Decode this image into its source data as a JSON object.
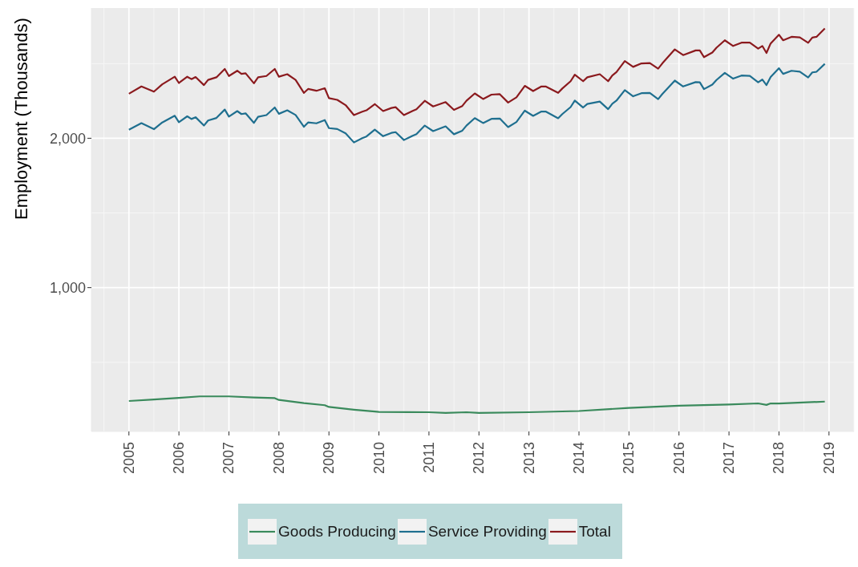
{
  "chart_data": {
    "type": "line",
    "ylabel": "Employment (Thousands)",
    "xlim": [
      "2004-04",
      "2019-07"
    ],
    "xticks": [
      "2005",
      "2006",
      "2007",
      "2008",
      "2009",
      "2010",
      "2011",
      "2012",
      "2013",
      "2014",
      "2015",
      "2016",
      "2017",
      "2018",
      "2019"
    ],
    "ylim": [
      37,
      2872
    ],
    "yticks": [
      {
        "value": 1000,
        "label": "1,000"
      },
      {
        "value": 2000,
        "label": "2,000"
      }
    ],
    "grid": true,
    "legend": "bottom",
    "series": [
      {
        "name": "Goods Producing",
        "color": "#3a8a5c",
        "x": [
          "2005-01",
          "2005-07",
          "2006-01",
          "2006-06",
          "2007-01",
          "2007-07",
          "2007-12",
          "2008-01",
          "2008-07",
          "2008-12",
          "2009-01",
          "2009-07",
          "2009-12",
          "2010-01",
          "2011-01",
          "2011-05",
          "2011-10",
          "2012-01",
          "2013-01",
          "2014-01",
          "2015-01",
          "2016-01",
          "2017-01",
          "2017-08",
          "2017-10",
          "2017-11",
          "2018-01",
          "2018-12"
        ],
        "values": [
          241,
          251,
          262,
          272,
          272,
          265,
          260,
          248,
          227,
          213,
          201,
          183,
          171,
          168,
          166,
          161,
          166,
          161,
          166,
          174,
          195,
          209,
          218,
          225,
          215,
          225,
          224,
          237
        ]
      },
      {
        "name": "Service Providing",
        "color": "#1f6f8f",
        "x": [
          "2005-01",
          "2005-04",
          "2005-07",
          "2005-09",
          "2005-12",
          "2006-01",
          "2006-03",
          "2006-04",
          "2006-05",
          "2006-07",
          "2006-08",
          "2006-10",
          "2006-12",
          "2007-01",
          "2007-03",
          "2007-04",
          "2007-05",
          "2007-07",
          "2007-08",
          "2007-10",
          "2007-12",
          "2008-01",
          "2008-03",
          "2008-05",
          "2008-07",
          "2008-08",
          "2008-10",
          "2008-12",
          "2009-01",
          "2009-03",
          "2009-05",
          "2009-07",
          "2009-09",
          "2009-10",
          "2009-12",
          "2010-02",
          "2010-04",
          "2010-05",
          "2010-07",
          "2010-09",
          "2010-10",
          "2010-12",
          "2011-02",
          "2011-05",
          "2011-07",
          "2011-09",
          "2011-10",
          "2011-12",
          "2012-02",
          "2012-04",
          "2012-06",
          "2012-08",
          "2012-10",
          "2012-12",
          "2013-02",
          "2013-04",
          "2013-05",
          "2013-08",
          "2013-09",
          "2013-11",
          "2013-12",
          "2014-02",
          "2014-03",
          "2014-06",
          "2014-08",
          "2014-09",
          "2014-10",
          "2014-12",
          "2015-02",
          "2015-04",
          "2015-06",
          "2015-08",
          "2015-09",
          "2015-12",
          "2016-02",
          "2016-05",
          "2016-06",
          "2016-07",
          "2016-09",
          "2016-10",
          "2016-12",
          "2017-02",
          "2017-04",
          "2017-06",
          "2017-08",
          "2017-09",
          "2017-10",
          "2017-11",
          "2018-01",
          "2018-02",
          "2018-04",
          "2018-06",
          "2018-08",
          "2018-09",
          "2018-10",
          "2018-12"
        ],
        "values": [
          2057,
          2101,
          2061,
          2106,
          2151,
          2108,
          2147,
          2129,
          2141,
          2085,
          2119,
          2136,
          2192,
          2145,
          2182,
          2162,
          2167,
          2103,
          2144,
          2155,
          2206,
          2164,
          2187,
          2156,
          2077,
          2106,
          2100,
          2122,
          2068,
          2062,
          2033,
          1972,
          2001,
          2012,
          2058,
          2014,
          2036,
          2041,
          1988,
          2016,
          2028,
          2085,
          2048,
          2080,
          2027,
          2051,
          2085,
          2135,
          2102,
          2130,
          2132,
          2075,
          2109,
          2185,
          2150,
          2179,
          2179,
          2134,
          2162,
          2209,
          2252,
          2206,
          2230,
          2246,
          2195,
          2231,
          2252,
          2322,
          2281,
          2302,
          2303,
          2262,
          2296,
          2386,
          2347,
          2376,
          2375,
          2329,
          2359,
          2390,
          2438,
          2399,
          2420,
          2418,
          2375,
          2393,
          2356,
          2410,
          2469,
          2431,
          2452,
          2446,
          2407,
          2441,
          2445,
          2498
        ]
      },
      {
        "name": "Total",
        "color": "#8b1a1e",
        "x": [
          "2005-01",
          "2005-04",
          "2005-07",
          "2005-09",
          "2005-12",
          "2006-01",
          "2006-03",
          "2006-04",
          "2006-05",
          "2006-07",
          "2006-08",
          "2006-10",
          "2006-12",
          "2007-01",
          "2007-03",
          "2007-04",
          "2007-05",
          "2007-07",
          "2007-08",
          "2007-10",
          "2007-12",
          "2008-01",
          "2008-03",
          "2008-05",
          "2008-07",
          "2008-08",
          "2008-10",
          "2008-12",
          "2009-01",
          "2009-03",
          "2009-05",
          "2009-07",
          "2009-09",
          "2009-10",
          "2009-12",
          "2010-02",
          "2010-04",
          "2010-05",
          "2010-07",
          "2010-09",
          "2010-10",
          "2010-12",
          "2011-02",
          "2011-05",
          "2011-07",
          "2011-09",
          "2011-10",
          "2011-12",
          "2012-02",
          "2012-04",
          "2012-06",
          "2012-08",
          "2012-10",
          "2012-12",
          "2013-02",
          "2013-04",
          "2013-05",
          "2013-08",
          "2013-09",
          "2013-11",
          "2013-12",
          "2014-02",
          "2014-03",
          "2014-06",
          "2014-08",
          "2014-09",
          "2014-10",
          "2014-12",
          "2015-02",
          "2015-04",
          "2015-06",
          "2015-08",
          "2015-09",
          "2015-12",
          "2016-02",
          "2016-05",
          "2016-06",
          "2016-07",
          "2016-09",
          "2016-10",
          "2016-12",
          "2017-02",
          "2017-04",
          "2017-06",
          "2017-08",
          "2017-09",
          "2017-10",
          "2017-11",
          "2018-01",
          "2018-02",
          "2018-04",
          "2018-06",
          "2018-08",
          "2018-09",
          "2018-10",
          "2018-12"
        ],
        "values": [
          2298,
          2347,
          2312,
          2361,
          2412,
          2370,
          2412,
          2396,
          2410,
          2356,
          2391,
          2408,
          2464,
          2417,
          2452,
          2431,
          2435,
          2368,
          2408,
          2417,
          2464,
          2412,
          2429,
          2391,
          2304,
          2330,
          2318,
          2335,
          2269,
          2257,
          2222,
          2155,
          2178,
          2187,
          2229,
          2182,
          2203,
          2208,
          2155,
          2182,
          2194,
          2251,
          2213,
          2242,
          2190,
          2216,
          2251,
          2300,
          2263,
          2292,
          2295,
          2239,
          2274,
          2351,
          2316,
          2347,
          2347,
          2304,
          2333,
          2382,
          2426,
          2382,
          2408,
          2429,
          2382,
          2420,
          2443,
          2517,
          2478,
          2501,
          2504,
          2466,
          2501,
          2595,
          2557,
          2588,
          2588,
          2543,
          2574,
          2606,
          2656,
          2618,
          2640,
          2640,
          2600,
          2618,
          2571,
          2635,
          2693,
          2656,
          2679,
          2675,
          2639,
          2674,
          2679,
          2735
        ]
      }
    ]
  }
}
